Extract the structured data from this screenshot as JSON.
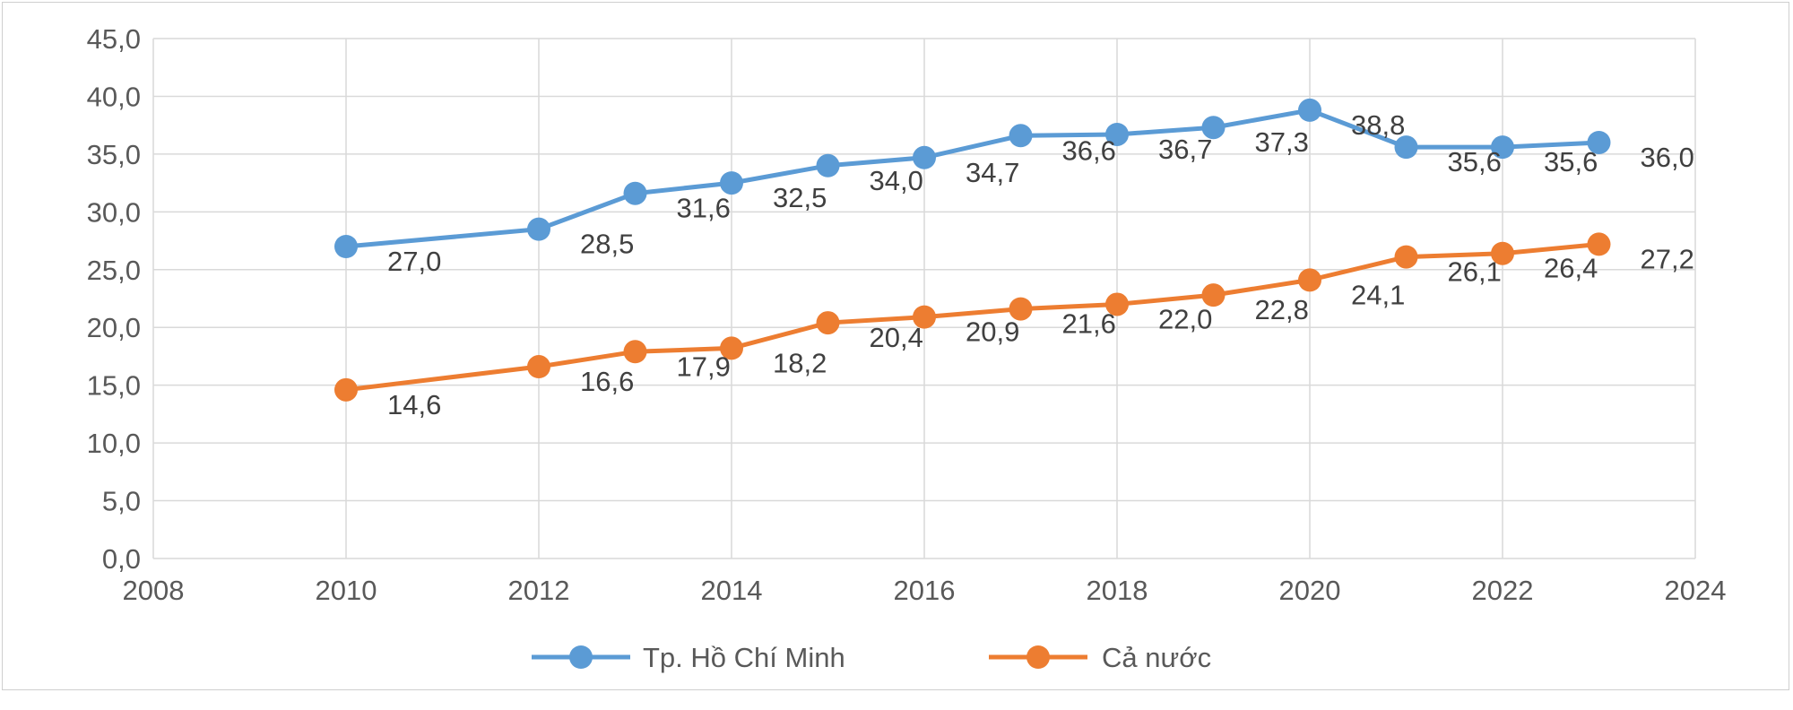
{
  "chart_data": {
    "type": "line",
    "title": "",
    "xlabel": "",
    "ylabel": "",
    "xlim": [
      2008,
      2024
    ],
    "ylim": [
      0,
      45
    ],
    "x_ticks": [
      "2008",
      "2010",
      "2012",
      "2014",
      "2016",
      "2018",
      "2020",
      "2022",
      "2024"
    ],
    "y_ticks": [
      "0,0",
      "5,0",
      "10,0",
      "15,0",
      "20,0",
      "25,0",
      "30,0",
      "35,0",
      "40,0",
      "45,0"
    ],
    "grid": true,
    "legend_position": "bottom",
    "series": [
      {
        "name": "Tp. Hồ Chí Minh",
        "color": "#5b9bd5",
        "points": [
          {
            "x": 2010,
            "y": 27.0,
            "label": "27,0"
          },
          {
            "x": 2012,
            "y": 28.5,
            "label": "28,5"
          },
          {
            "x": 2013,
            "y": 31.6,
            "label": "31,6"
          },
          {
            "x": 2014,
            "y": 32.5,
            "label": "32,5"
          },
          {
            "x": 2015,
            "y": 34.0,
            "label": "34,0"
          },
          {
            "x": 2016,
            "y": 34.7,
            "label": "34,7"
          },
          {
            "x": 2017,
            "y": 36.6,
            "label": "36,6"
          },
          {
            "x": 2018,
            "y": 36.7,
            "label": "36,7"
          },
          {
            "x": 2019,
            "y": 37.3,
            "label": "37,3"
          },
          {
            "x": 2020,
            "y": 38.8,
            "label": "38,8"
          },
          {
            "x": 2021,
            "y": 35.6,
            "label": "35,6"
          },
          {
            "x": 2022,
            "y": 35.6,
            "label": "35,6"
          },
          {
            "x": 2023,
            "y": 36.0,
            "label": "36,0"
          }
        ]
      },
      {
        "name": "Cả nước",
        "color": "#ed7d31",
        "points": [
          {
            "x": 2010,
            "y": 14.6,
            "label": "14,6"
          },
          {
            "x": 2012,
            "y": 16.6,
            "label": "16,6"
          },
          {
            "x": 2013,
            "y": 17.9,
            "label": "17,9"
          },
          {
            "x": 2014,
            "y": 18.2,
            "label": "18,2"
          },
          {
            "x": 2015,
            "y": 20.4,
            "label": "20,4"
          },
          {
            "x": 2016,
            "y": 20.9,
            "label": "20,9"
          },
          {
            "x": 2017,
            "y": 21.6,
            "label": "21,6"
          },
          {
            "x": 2018,
            "y": 22.0,
            "label": "22,0"
          },
          {
            "x": 2019,
            "y": 22.8,
            "label": "22,8"
          },
          {
            "x": 2020,
            "y": 24.1,
            "label": "24,1"
          },
          {
            "x": 2021,
            "y": 26.1,
            "label": "26,1"
          },
          {
            "x": 2022,
            "y": 26.4,
            "label": "26,4"
          },
          {
            "x": 2023,
            "y": 27.2,
            "label": "27,2"
          }
        ]
      }
    ]
  }
}
